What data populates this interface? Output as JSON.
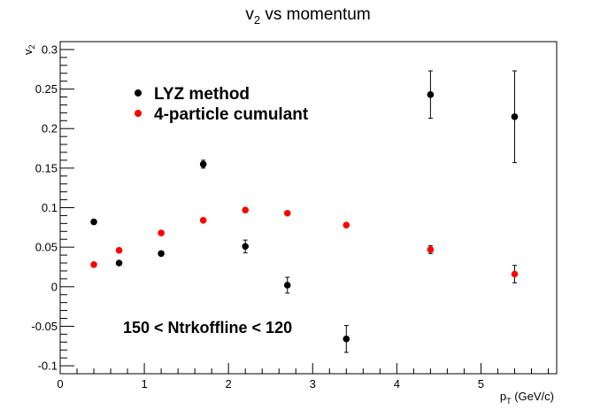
{
  "chart_data": {
    "type": "scatter",
    "title": {
      "main": "v",
      "sub": "2",
      "rest": " vs momentum"
    },
    "xlabel": {
      "main": "p",
      "sub": "T",
      "rest": " (GeV/c)"
    },
    "ylabel": {
      "main": "v",
      "sub": "2"
    },
    "xlim": [
      0,
      5.9
    ],
    "ylim": [
      -0.11,
      0.31
    ],
    "x_ticks": [
      0,
      1,
      2,
      3,
      4,
      5
    ],
    "x_tick_labels": [
      "0",
      "1",
      "2",
      "3",
      "4",
      "5"
    ],
    "y_ticks": [
      -0.1,
      -0.05,
      0,
      0.05,
      0.1,
      0.15,
      0.2,
      0.25,
      0.3
    ],
    "y_tick_labels": [
      "-0.1",
      "-0.05",
      "0",
      "0.05",
      "0.1",
      "0.15",
      "0.2",
      "0.25",
      "0.3"
    ],
    "grid": false,
    "legend_position": "upper-left",
    "annotation": "150 < Ntrkoffline < 120",
    "series": [
      {
        "name": "LYZ method",
        "color": "#000000",
        "points": [
          {
            "x": 0.4,
            "y": 0.082,
            "err": 0.002
          },
          {
            "x": 0.7,
            "y": 0.03,
            "err": 0.002
          },
          {
            "x": 1.2,
            "y": 0.042,
            "err": 0.002
          },
          {
            "x": 1.7,
            "y": 0.155,
            "err": 0.005
          },
          {
            "x": 2.2,
            "y": 0.051,
            "err": 0.008
          },
          {
            "x": 2.7,
            "y": 0.002,
            "err": 0.01
          },
          {
            "x": 3.4,
            "y": -0.066,
            "err": 0.017
          },
          {
            "x": 4.4,
            "y": 0.243,
            "err": 0.03
          },
          {
            "x": 5.4,
            "y": 0.215,
            "err": 0.058
          }
        ]
      },
      {
        "name": "4-particle cumulant",
        "color": "#ff0000",
        "points": [
          {
            "x": 0.4,
            "y": 0.028,
            "err": 0.001
          },
          {
            "x": 0.7,
            "y": 0.046,
            "err": 0.001
          },
          {
            "x": 1.2,
            "y": 0.068,
            "err": 0.001
          },
          {
            "x": 1.7,
            "y": 0.084,
            "err": 0.001
          },
          {
            "x": 2.2,
            "y": 0.097,
            "err": 0.001
          },
          {
            "x": 2.7,
            "y": 0.093,
            "err": 0.001
          },
          {
            "x": 3.4,
            "y": 0.078,
            "err": 0.002
          },
          {
            "x": 4.4,
            "y": 0.047,
            "err": 0.005
          },
          {
            "x": 5.4,
            "y": 0.016,
            "err": 0.011
          }
        ]
      }
    ]
  }
}
